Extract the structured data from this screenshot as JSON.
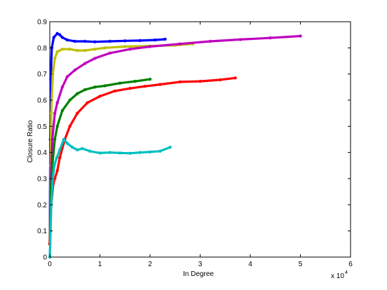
{
  "chart_data": {
    "type": "line",
    "title": "",
    "xlabel": "In Degree",
    "ylabel": "Closure Ratio",
    "x_multiplier_base": "x 10",
    "x_multiplier_exponent": "4",
    "xlim": [
      0,
      60000
    ],
    "ylim": [
      0,
      0.9
    ],
    "xticks": [
      0,
      10000,
      20000,
      30000,
      40000,
      50000,
      60000
    ],
    "xtick_labels": [
      "0",
      "1",
      "2",
      "3",
      "4",
      "5",
      "6"
    ],
    "yticks": [
      0,
      0.1,
      0.2,
      0.3,
      0.4,
      0.5,
      0.6,
      0.7,
      0.8,
      0.9
    ],
    "ytick_labels": [
      "0",
      "0.1",
      "0.2",
      "0.3",
      "0.4",
      "0.5",
      "0.6",
      "0.7",
      "0.8",
      "0.9"
    ],
    "grid": false,
    "series": [
      {
        "color": "#0000ff",
        "points": [
          [
            0,
            0.05
          ],
          [
            100,
            0.45
          ],
          [
            200,
            0.68
          ],
          [
            400,
            0.8
          ],
          [
            800,
            0.84
          ],
          [
            1500,
            0.855
          ],
          [
            2000,
            0.85
          ],
          [
            2500,
            0.84
          ],
          [
            3500,
            0.83
          ],
          [
            5000,
            0.825
          ],
          [
            7000,
            0.825
          ],
          [
            9000,
            0.823
          ],
          [
            12000,
            0.825
          ],
          [
            15000,
            0.827
          ],
          [
            18000,
            0.828
          ],
          [
            21000,
            0.83
          ],
          [
            23000,
            0.833
          ]
        ]
      },
      {
        "color": "#bfbf00",
        "points": [
          [
            0,
            0.05
          ],
          [
            150,
            0.35
          ],
          [
            300,
            0.55
          ],
          [
            600,
            0.7
          ],
          [
            1000,
            0.76
          ],
          [
            1500,
            0.785
          ],
          [
            2500,
            0.795
          ],
          [
            4000,
            0.795
          ],
          [
            5500,
            0.79
          ],
          [
            7000,
            0.79
          ],
          [
            9000,
            0.795
          ],
          [
            11000,
            0.8
          ],
          [
            15000,
            0.805
          ],
          [
            20000,
            0.807
          ],
          [
            25000,
            0.81
          ],
          [
            28500,
            0.815
          ]
        ]
      },
      {
        "color": "#bf00bf",
        "points": [
          [
            0,
            0.05
          ],
          [
            200,
            0.3
          ],
          [
            500,
            0.45
          ],
          [
            1000,
            0.55
          ],
          [
            1500,
            0.59
          ],
          [
            2500,
            0.65
          ],
          [
            3500,
            0.69
          ],
          [
            5000,
            0.715
          ],
          [
            7000,
            0.74
          ],
          [
            9000,
            0.76
          ],
          [
            12000,
            0.78
          ],
          [
            16000,
            0.795
          ],
          [
            20000,
            0.805
          ],
          [
            26000,
            0.815
          ],
          [
            32000,
            0.825
          ],
          [
            38000,
            0.832
          ],
          [
            44000,
            0.838
          ],
          [
            50000,
            0.845
          ]
        ]
      },
      {
        "color": "#008000",
        "points": [
          [
            0,
            0.05
          ],
          [
            200,
            0.25
          ],
          [
            500,
            0.35
          ],
          [
            1000,
            0.45
          ],
          [
            1500,
            0.5
          ],
          [
            2500,
            0.56
          ],
          [
            4000,
            0.6
          ],
          [
            5500,
            0.625
          ],
          [
            7000,
            0.64
          ],
          [
            9000,
            0.65
          ],
          [
            11000,
            0.655
          ],
          [
            14000,
            0.665
          ],
          [
            17000,
            0.672
          ],
          [
            20000,
            0.68
          ]
        ]
      },
      {
        "color": "#ff0000",
        "points": [
          [
            0,
            0.05
          ],
          [
            300,
            0.2
          ],
          [
            700,
            0.28
          ],
          [
            1000,
            0.3
          ],
          [
            1500,
            0.33
          ],
          [
            2000,
            0.38
          ],
          [
            3000,
            0.45
          ],
          [
            4000,
            0.5
          ],
          [
            5500,
            0.55
          ],
          [
            7500,
            0.59
          ],
          [
            10000,
            0.615
          ],
          [
            13000,
            0.635
          ],
          [
            16000,
            0.645
          ],
          [
            19000,
            0.653
          ],
          [
            22000,
            0.66
          ],
          [
            26000,
            0.67
          ],
          [
            30000,
            0.672
          ],
          [
            34000,
            0.678
          ],
          [
            37000,
            0.685
          ]
        ]
      },
      {
        "color": "#00bfbf",
        "points": [
          [
            0,
            0.0
          ],
          [
            150,
            0.1
          ],
          [
            300,
            0.2
          ],
          [
            600,
            0.3
          ],
          [
            900,
            0.35
          ],
          [
            1400,
            0.38
          ],
          [
            2000,
            0.41
          ],
          [
            2800,
            0.45
          ],
          [
            3500,
            0.435
          ],
          [
            4500,
            0.42
          ],
          [
            5500,
            0.41
          ],
          [
            6500,
            0.415
          ],
          [
            8000,
            0.405
          ],
          [
            10000,
            0.398
          ],
          [
            12000,
            0.4
          ],
          [
            14000,
            0.398
          ],
          [
            16000,
            0.397
          ],
          [
            18000,
            0.4
          ],
          [
            20000,
            0.402
          ],
          [
            22000,
            0.405
          ],
          [
            24000,
            0.42
          ]
        ]
      }
    ]
  }
}
